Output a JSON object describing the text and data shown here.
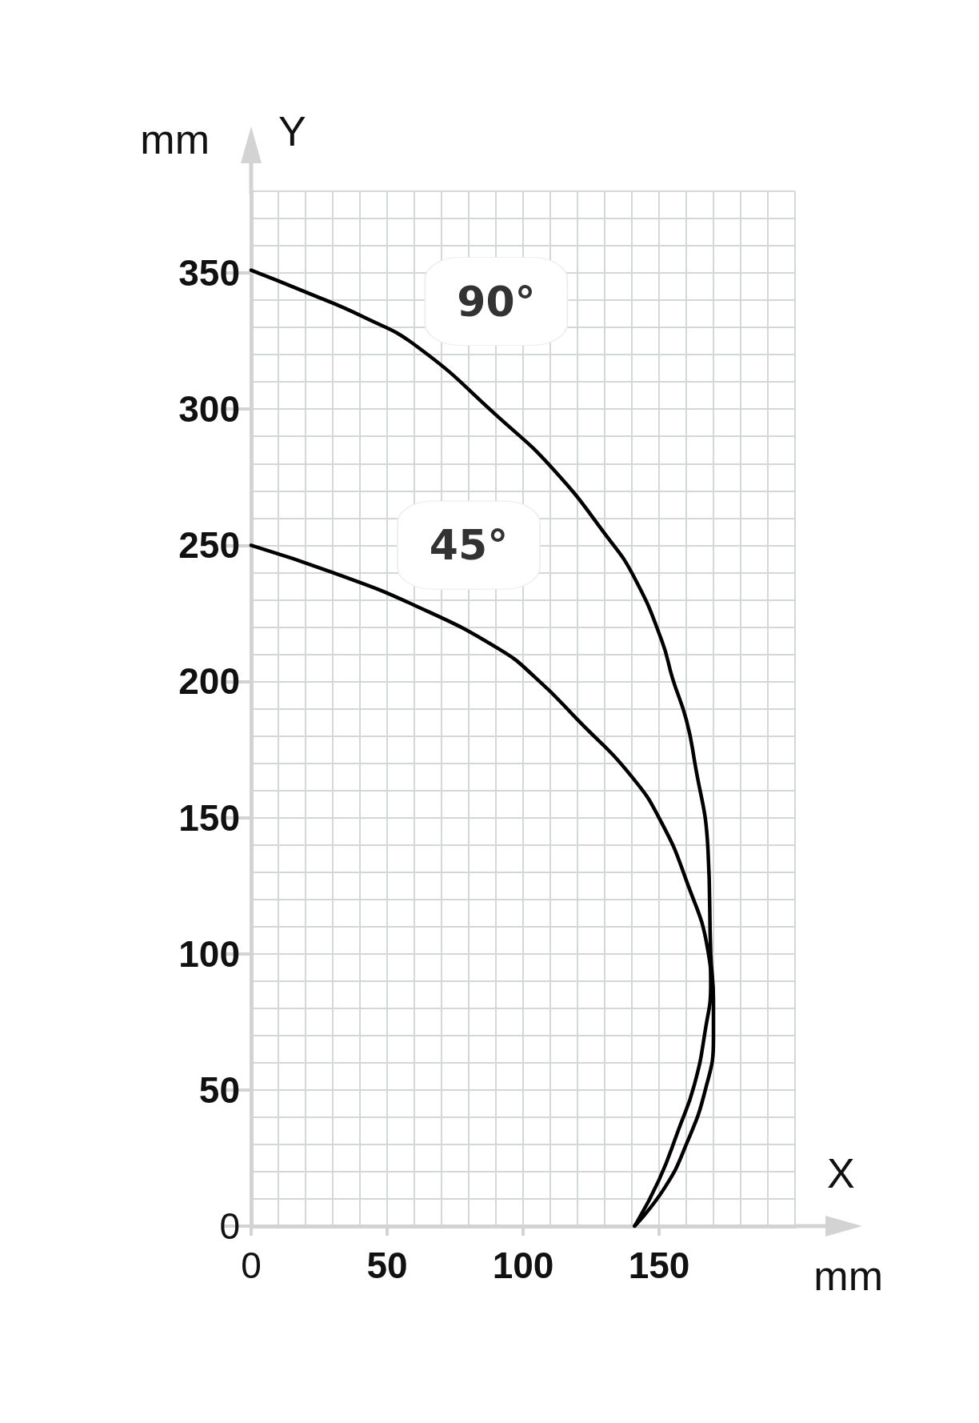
{
  "chart_data": {
    "type": "line",
    "xlabel": "X",
    "ylabel": "Y",
    "annotations": [
      "mm",
      "mm"
    ],
    "xlim": [
      0,
      200
    ],
    "xticks": [
      0,
      50,
      100,
      150
    ],
    "ylim": [
      0,
      380
    ],
    "yticks": [
      0,
      50,
      100,
      150,
      200,
      250,
      300,
      350
    ],
    "grid": true,
    "marker": "none",
    "line_style": "solid",
    "series": [
      {
        "name": "90°",
        "color": "#000000",
        "x": [
          0,
          20,
          41,
          61,
          91,
          111,
          131,
          141,
          151,
          155,
          160,
          163,
          168,
          169,
          170,
          170,
          167,
          160,
          152,
          141
        ],
        "values": [
          351,
          343,
          334,
          323,
          297,
          278,
          253,
          238,
          215,
          201,
          186,
          171,
          138,
          100,
          83,
          69,
          50,
          30,
          14,
          0
        ]
      },
      {
        "name": "45°",
        "color": "#000000",
        "x": [
          0,
          30,
          60,
          91,
          105,
          120,
          140,
          151,
          160,
          168,
          169,
          167,
          163,
          157,
          150,
          141
        ],
        "values": [
          250,
          240,
          228,
          212,
          201,
          186,
          165,
          148,
          127,
          101,
          89,
          72,
          52,
          35,
          17,
          0
        ]
      }
    ]
  }
}
